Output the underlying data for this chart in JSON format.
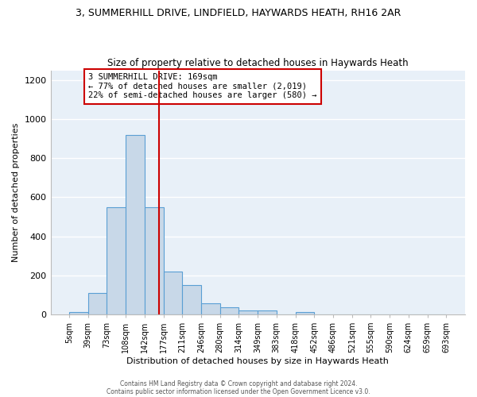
{
  "title": "3, SUMMERHILL DRIVE, LINDFIELD, HAYWARDS HEATH, RH16 2AR",
  "subtitle": "Size of property relative to detached houses in Haywards Heath",
  "xlabel": "Distribution of detached houses by size in Haywards Heath",
  "ylabel": "Number of detached properties",
  "bar_color": "#c8d8e8",
  "bar_edge_color": "#5a9fd4",
  "background_color": "#e8f0f8",
  "grid_color": "#ffffff",
  "bins": [
    5,
    39,
    73,
    108,
    142,
    177,
    211,
    246,
    280,
    314,
    349,
    383,
    418,
    452,
    486,
    521,
    555,
    590,
    624,
    659,
    693
  ],
  "bin_labels": [
    "5sqm",
    "39sqm",
    "73sqm",
    "108sqm",
    "142sqm",
    "177sqm",
    "211sqm",
    "246sqm",
    "280sqm",
    "314sqm",
    "349sqm",
    "383sqm",
    "418sqm",
    "452sqm",
    "486sqm",
    "521sqm",
    "555sqm",
    "590sqm",
    "624sqm",
    "659sqm",
    "693sqm"
  ],
  "counts": [
    10,
    110,
    550,
    920,
    550,
    220,
    150,
    55,
    35,
    20,
    20,
    0,
    10,
    0,
    0,
    0,
    0,
    0,
    0,
    0
  ],
  "property_line_x": 169,
  "property_line_color": "#cc0000",
  "annotation_text": "3 SUMMERHILL DRIVE: 169sqm\n← 77% of detached houses are smaller (2,019)\n22% of semi-detached houses are larger (580) →",
  "annotation_box_color": "#ffffff",
  "annotation_border_color": "#cc0000",
  "ylim": [
    0,
    1250
  ],
  "yticks": [
    0,
    200,
    400,
    600,
    800,
    1000,
    1200
  ],
  "footer_line1": "Contains HM Land Registry data © Crown copyright and database right 2024.",
  "footer_line2": "Contains public sector information licensed under the Open Government Licence v3.0.",
  "title_fontsize": 9,
  "subtitle_fontsize": 8.5
}
